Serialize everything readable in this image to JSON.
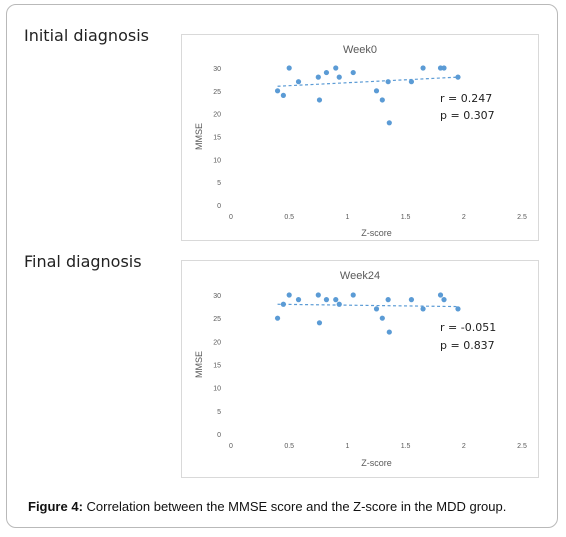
{
  "headings": {
    "initial": "Initial diagnosis",
    "final": "Final diagnosis"
  },
  "caption": {
    "label": "Figure 4:",
    "text": " Correlation between the MMSE score and the Z-score in the MDD group."
  },
  "colors": {
    "points": "#5b9bd5",
    "trendline": "#5b9bd5",
    "axis_text": "#595959",
    "stats_text": "#1f1f1f"
  },
  "chart_data": [
    {
      "type": "scatter",
      "title": "Week0",
      "xlabel": "Z-score",
      "ylabel": "MMSE",
      "xlim": [
        0,
        2.5
      ],
      "ylim": [
        0,
        30
      ],
      "xticks": [
        "0",
        "0.5",
        "1",
        "1.5",
        "2",
        "2.5"
      ],
      "yticks": [
        "0",
        "5",
        "10",
        "15",
        "20",
        "25",
        "30"
      ],
      "grid": false,
      "trendline": {
        "style": "dashed",
        "x": [
          0.4,
          1.95
        ],
        "y": [
          26.0,
          28.0
        ]
      },
      "annotation": {
        "r": "r = 0.247",
        "p": "p = 0.307"
      },
      "points": [
        {
          "x": 0.4,
          "y": 25
        },
        {
          "x": 0.45,
          "y": 24
        },
        {
          "x": 0.5,
          "y": 30
        },
        {
          "x": 0.58,
          "y": 27
        },
        {
          "x": 0.75,
          "y": 28
        },
        {
          "x": 0.76,
          "y": 23
        },
        {
          "x": 0.82,
          "y": 29
        },
        {
          "x": 0.9,
          "y": 30
        },
        {
          "x": 0.93,
          "y": 28
        },
        {
          "x": 1.05,
          "y": 29
        },
        {
          "x": 1.25,
          "y": 25
        },
        {
          "x": 1.3,
          "y": 23
        },
        {
          "x": 1.35,
          "y": 27
        },
        {
          "x": 1.36,
          "y": 18
        },
        {
          "x": 1.55,
          "y": 27
        },
        {
          "x": 1.65,
          "y": 30
        },
        {
          "x": 1.8,
          "y": 30
        },
        {
          "x": 1.83,
          "y": 30
        },
        {
          "x": 1.95,
          "y": 28
        }
      ]
    },
    {
      "type": "scatter",
      "title": "Week24",
      "xlabel": "Z-score",
      "ylabel": "MMSE",
      "xlim": [
        0,
        2.5
      ],
      "ylim": [
        0,
        30
      ],
      "xticks": [
        "0",
        "0.5",
        "1",
        "1.5",
        "2",
        "2.5"
      ],
      "yticks": [
        "0",
        "5",
        "10",
        "15",
        "20",
        "25",
        "30"
      ],
      "grid": false,
      "trendline": {
        "style": "dashed",
        "x": [
          0.4,
          1.95
        ],
        "y": [
          28.0,
          27.5
        ]
      },
      "annotation": {
        "r": "r = -0.051",
        "p": "p = 0.837"
      },
      "points": [
        {
          "x": 0.4,
          "y": 25
        },
        {
          "x": 0.45,
          "y": 28
        },
        {
          "x": 0.5,
          "y": 30
        },
        {
          "x": 0.58,
          "y": 29
        },
        {
          "x": 0.75,
          "y": 30
        },
        {
          "x": 0.76,
          "y": 24
        },
        {
          "x": 0.82,
          "y": 29
        },
        {
          "x": 0.9,
          "y": 29
        },
        {
          "x": 0.93,
          "y": 28
        },
        {
          "x": 1.05,
          "y": 30
        },
        {
          "x": 1.25,
          "y": 27
        },
        {
          "x": 1.3,
          "y": 25
        },
        {
          "x": 1.35,
          "y": 29
        },
        {
          "x": 1.36,
          "y": 22
        },
        {
          "x": 1.55,
          "y": 29
        },
        {
          "x": 1.65,
          "y": 27
        },
        {
          "x": 1.8,
          "y": 30
        },
        {
          "x": 1.83,
          "y": 29
        },
        {
          "x": 1.95,
          "y": 27
        }
      ]
    }
  ]
}
